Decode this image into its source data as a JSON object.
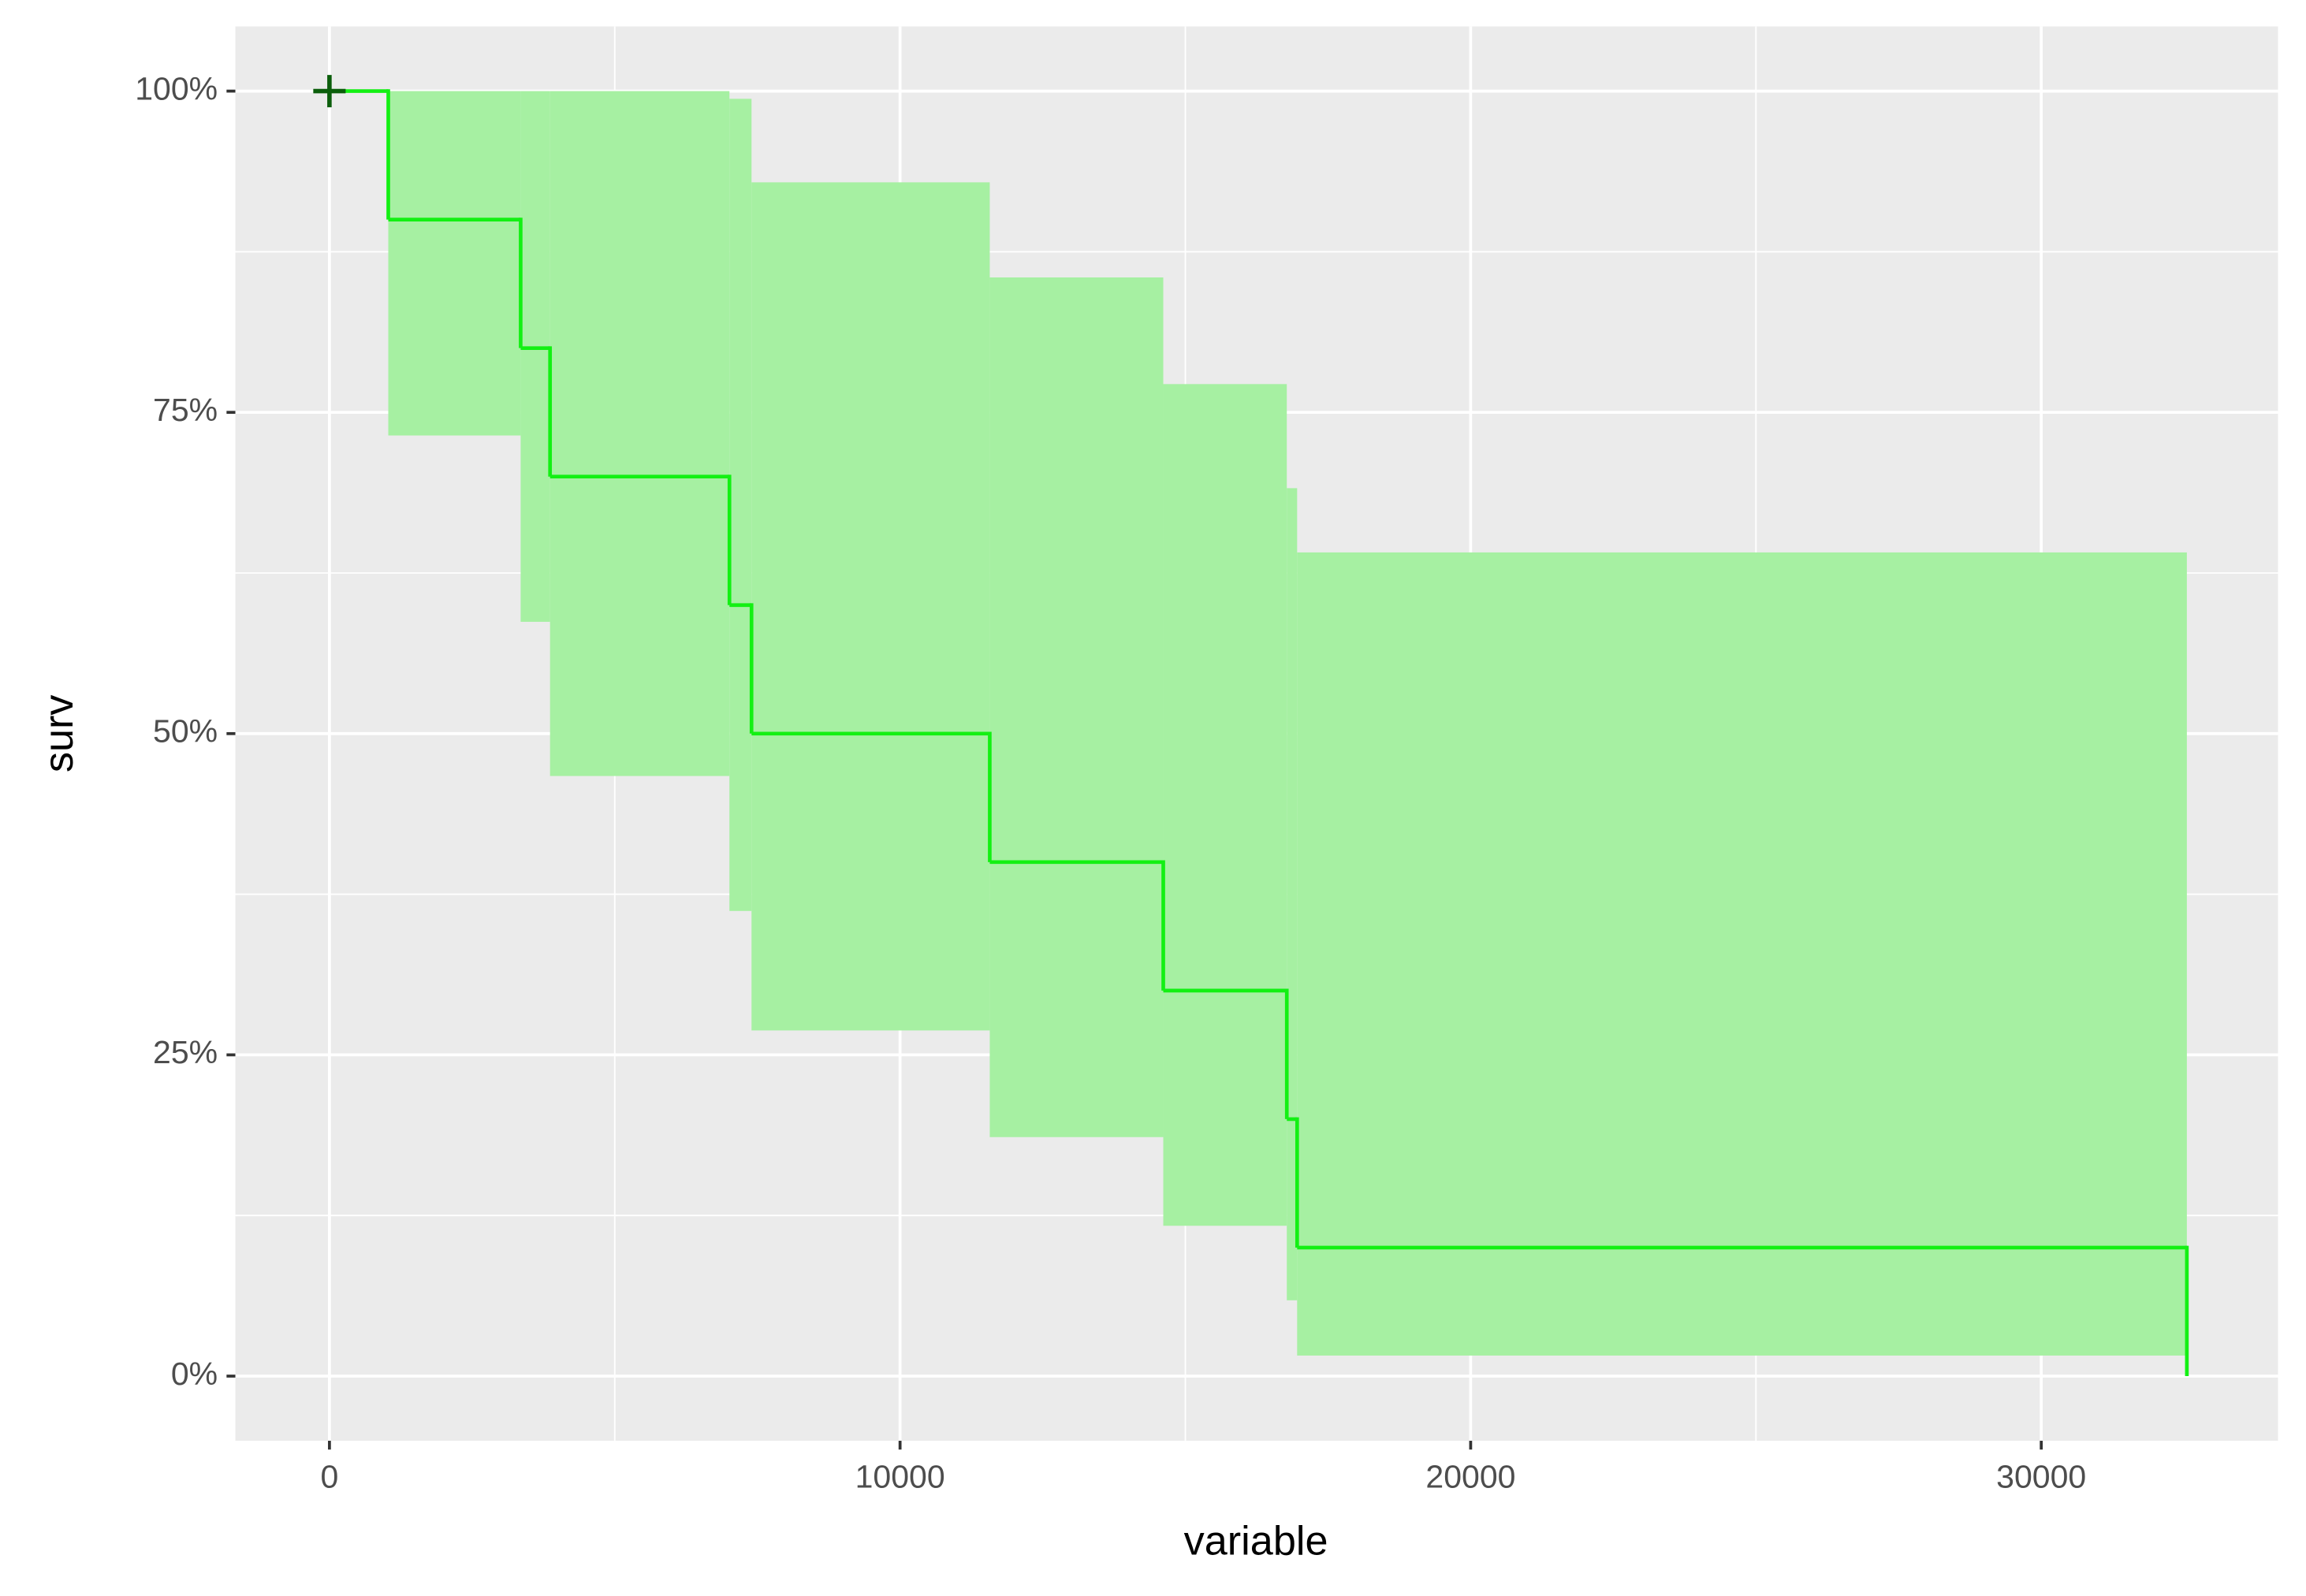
{
  "chart_data": {
    "type": "survival-step",
    "x_label": "variable",
    "y_label": "surv",
    "x": [
      0,
      1031,
      3351,
      3866,
      7010,
      7397,
      11572,
      14613,
      16778,
      16959,
      32552
    ],
    "series": [
      {
        "color": "#13f013",
        "band_color": "#a6f0a2",
        "values": [
          1,
          0.9,
          0.8,
          0.7,
          0.6,
          0.5,
          0.4,
          0.3,
          0.2,
          0.1,
          0
        ],
        "upper": [
          1,
          1,
          1,
          1,
          0.994,
          0.929,
          0.855,
          0.772,
          0.691,
          0.641,
          null
        ],
        "lower": [
          1,
          0.732,
          0.587,
          0.467,
          0.362,
          0.269,
          0.186,
          0.117,
          0.059,
          0.016,
          null
        ]
      }
    ],
    "censor": {
      "x": [
        0
      ],
      "values": [
        1
      ],
      "color": "#0b5e0b"
    },
    "xlim": [
      -1649,
      34149
    ],
    "ylim": [
      -0.0503,
      1.0503
    ],
    "xticks": [
      0,
      10000,
      20000,
      30000
    ],
    "yticks": [
      {
        "value": 0,
        "label": "0%"
      },
      {
        "value": 0.25,
        "label": "25%"
      },
      {
        "value": 0.5,
        "label": "50%"
      },
      {
        "value": 0.75,
        "label": "75%"
      },
      {
        "value": 1,
        "label": "100%"
      }
    ],
    "x_minor_grid": [
      5000,
      15000,
      25000
    ],
    "y_minor_grid": [
      0.125,
      0.375,
      0.625,
      0.875
    ],
    "grid": true,
    "panel_color": "#ebebeb"
  }
}
